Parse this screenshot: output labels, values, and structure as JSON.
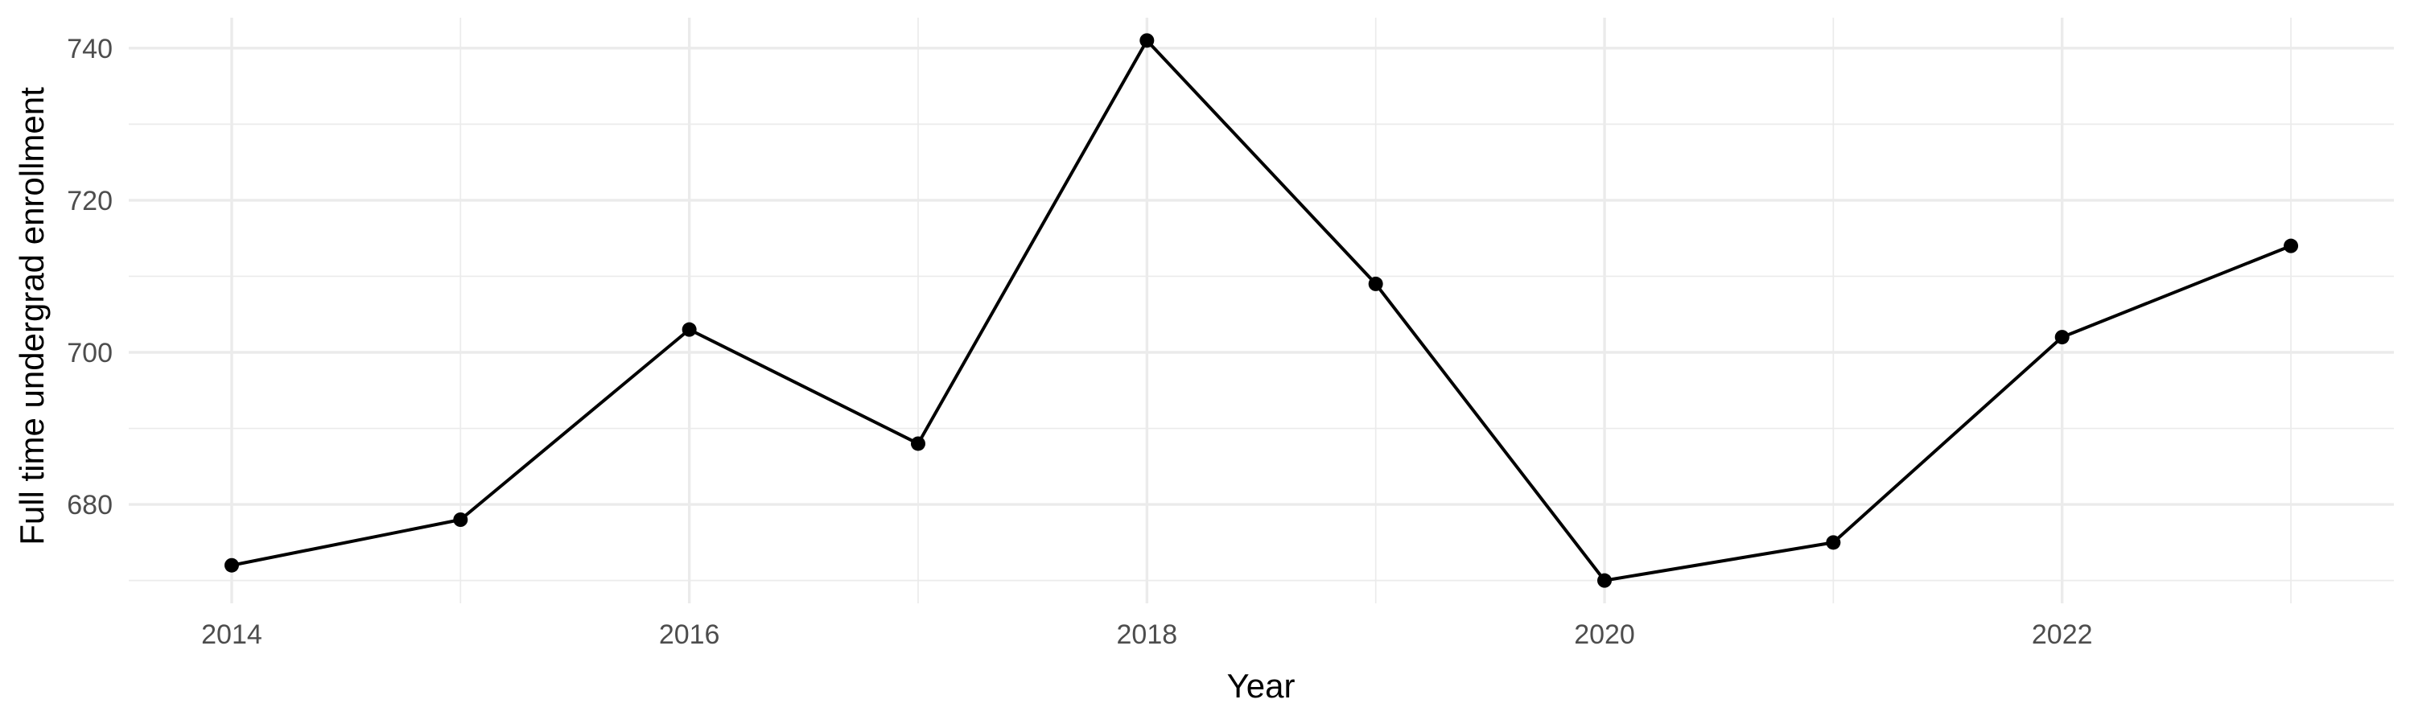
{
  "chart_data": {
    "type": "line",
    "title": "",
    "xlabel": "Year",
    "ylabel": "Full time undergrad enrollment",
    "x": [
      2014,
      2015,
      2016,
      2017,
      2018,
      2019,
      2020,
      2021,
      2022,
      2023
    ],
    "series": [
      {
        "values": [
          672,
          678,
          703,
          688,
          741,
          709,
          670,
          675,
          702,
          714
        ]
      }
    ],
    "xlim": [
      2013.55,
      2023.45
    ],
    "ylim": [
      667,
      744
    ],
    "x_major_ticks": [
      2014,
      2016,
      2018,
      2020,
      2022
    ],
    "x_minor_ticks": [
      2015,
      2017,
      2019,
      2021,
      2023
    ],
    "y_major_ticks": [
      680,
      700,
      720,
      740
    ],
    "y_minor_ticks": [
      670,
      690,
      710,
      730
    ],
    "grid": true,
    "legend": "none",
    "colors": {
      "line": "#000000",
      "point": "#000000",
      "grid": "#ebebeb",
      "tick_text": "#4d4d4d",
      "background": "#ffffff"
    }
  }
}
